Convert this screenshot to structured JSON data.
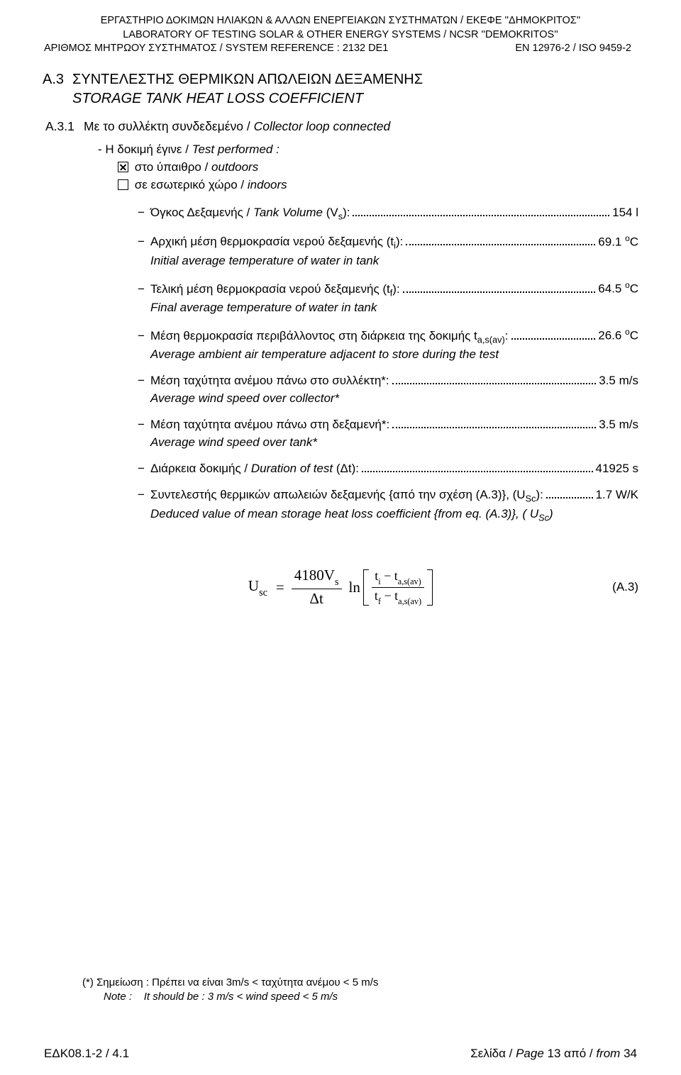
{
  "header": {
    "line1": "ΕΡΓΑΣΤΗΡΙΟ ΔΟΚΙΜΩΝ ΗΛΙΑΚΩΝ & ΑΛΛΩΝ ΕΝΕΡΓΕΙΑΚΩΝ ΣΥΣΤΗΜΑΤΩΝ / ΕΚΕΦΕ ''ΔΗΜΟΚΡΙΤΟΣ''",
    "line2": "LABORATORY OF TESTING SOLAR & OTHER ENERGY SYSTEMS / NCSR ''DEMOKRITOS''",
    "line3_left": "ΑΡΙΘΜΟΣ ΜΗΤΡΩΟΥ ΣΥΣΤΗΜΑΤΟΣ / SYSTEM REFERENCE : 2132 DE1",
    "line3_right": "EN 12976-2 / ISO 9459-2"
  },
  "sectionA3": {
    "prefix": "A.3",
    "title_el": "ΣΥΝΤΕΛΕΣΤΗΣ ΘΕΡΜΙΚΩΝ ΑΠΩΛΕΙΩΝ ΔΕΞΑΜΕΝΗΣ",
    "title_en": "STORAGE TANK HEAT LOSS COEFFICIENT"
  },
  "sectionA31": {
    "prefix": "A.3.1",
    "title_el": "Με το συλλέκτη συνδεδεμένο / ",
    "title_en": "Collector loop connected"
  },
  "test_performed": {
    "label": "- Η δοκιμή έγινε / ",
    "label_en": "Test performed :",
    "outdoors_el": "στο ύπαιθρο / ",
    "outdoors_en": "outdoors",
    "indoors_el": "σε εσωτερικό χώρο / ",
    "indoors_en": "indoors",
    "outdoors_checked": true,
    "indoors_checked": false
  },
  "entries": [
    {
      "label_el": "Όγκος Δεξαμενής / ",
      "label_en_inline": "Tank Volume",
      "symbol": " (V",
      "symbol_sub": "s",
      "symbol_close": "):",
      "value": "154 l",
      "sub_en": ""
    },
    {
      "label_el": "Αρχική μέση θερμοκρασία νερού δεξαμενής (t",
      "label_sub": "i",
      "label_close": "):",
      "value": "69.1 ",
      "value_sup": "o",
      "value_unit": "C",
      "sub_en": "Initial average temperature of water in tank"
    },
    {
      "label_el": "Τελική μέση θερμοκρασία νερού δεξαμενής (t",
      "label_sub": "f",
      "label_close": "):",
      "value": "64.5 ",
      "value_sup": "o",
      "value_unit": "C",
      "sub_en": "Final average temperature of water in tank"
    },
    {
      "label_el": "Μέση θερμοκρασία περιβάλλοντος στη διάρκεια της δοκιμής t",
      "label_sub": "a,s(av)",
      "label_close": ":",
      "value": "26.6 ",
      "value_sup": "o",
      "value_unit": "C",
      "sub_en": "Average ambient air temperature adjacent to store during the test"
    },
    {
      "label_el": "Μέση ταχύτητα ανέμου πάνω στο συλλέκτη*:",
      "value": "3.5 m/s",
      "sub_en": "Average wind speed over collector*"
    },
    {
      "label_el": "Μέση ταχύτητα ανέμου πάνω στη δεξαμενή*:",
      "value": "3.5 m/s",
      "sub_en": "Average wind speed over tank*"
    },
    {
      "label_el": "Διάρκεια δοκιμής / ",
      "label_en_inline": "Duration of test",
      "symbol": " (Δt):",
      "value": "41925 s",
      "sub_en": ""
    },
    {
      "label_el": "Συντελεστής θερμικών απωλειών δεξαμενής {από την σχέση (A.3)}, (U",
      "label_sub": "Sc",
      "label_close": "):",
      "value": "1.7 W/K",
      "sub_en": "Deduced value of mean storage heat loss coefficient {from eq. (A.3)}, ( U",
      "sub_en_sub": "Sc",
      "sub_en_close": ")"
    }
  ],
  "equation": {
    "lhs": "U",
    "lhs_sub": "sc",
    "eq": "=",
    "frac_num_a": "4180V",
    "frac_num_sub": "s",
    "frac_den": "Δt",
    "ln": "ln",
    "inner_num_a": "t",
    "inner_num_sub1": "i",
    "inner_minus": "−",
    "inner_num_b": "t",
    "inner_num_sub2": "a,s(av)",
    "inner_den_a": "t",
    "inner_den_sub1": "f",
    "inner_den_b": "t",
    "inner_den_sub2": "a,s(av)",
    "tag": "(A.3)"
  },
  "footnote": {
    "line1_pre": "(*) Σημείωση : Πρέπει να είναι 3m/s < ταχύτητα ανέμου < 5 m/s",
    "line2_label": "Note :",
    "line2_txt": "It should be : 3 m/s < wind speed < 5 m/s"
  },
  "footer": {
    "left": "ΕΔΚ08.1-2 / 4.1",
    "right_a": "Σελίδα / ",
    "right_page_lbl": "Page ",
    "right_num": "13",
    "right_b": " από / ",
    "right_from": "from ",
    "right_total": "34"
  }
}
